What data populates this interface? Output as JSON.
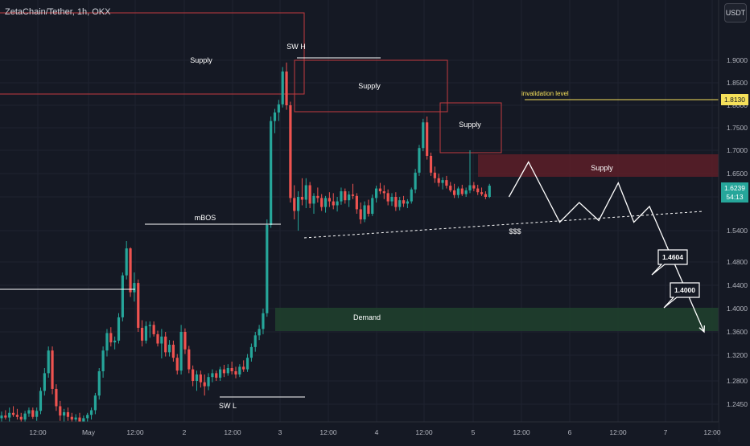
{
  "header": {
    "title": "ZetaChain/Tether, 1h, OKX",
    "currency": "USDT"
  },
  "colors": {
    "background": "#151924",
    "up": "#26a69a",
    "down": "#ef5350",
    "supply_line": "#c43b3f",
    "supply_fill": "#5c1f28",
    "demand_fill": "#1f3f2d",
    "yellow": "#f5e05a",
    "white": "#ffffff",
    "axis_text": "#b2b5be"
  },
  "chart_data": {
    "type": "candlestick",
    "symbol": "ZetaChain/Tether",
    "interval": "1h",
    "exchange": "OKX",
    "y_axis": {
      "ticks": [
        "1.9000",
        "1.8500",
        "1.8000",
        "1.7500",
        "1.7000",
        "1.6500",
        "1.6000",
        "1.5400",
        "1.4800",
        "1.4400",
        "1.4000",
        "1.3600",
        "1.3200",
        "1.2800",
        "1.2450"
      ],
      "tick_values": [
        1.9,
        1.85,
        1.8,
        1.75,
        1.7,
        1.65,
        1.6,
        1.54,
        1.48,
        1.44,
        1.4,
        1.36,
        1.32,
        1.28,
        1.245
      ]
    },
    "x_axis": {
      "ticks": [
        "12:00",
        "May",
        "12:00",
        "2",
        "12:00",
        "3",
        "12:00",
        "4",
        "12:00",
        "5",
        "12:00",
        "6",
        "12:00",
        "7",
        "12:00"
      ]
    },
    "current_price": {
      "value": "1.6239",
      "countdown": "54:13"
    },
    "invalidation": {
      "label": "invalidation level",
      "value": "1.8130"
    },
    "targets": [
      "1.4604",
      "1.4000"
    ],
    "zones": {
      "supply_labels": [
        "Supply",
        "Supply",
        "Supply",
        "Supply"
      ],
      "demand_label": "Demand"
    },
    "structure_labels": {
      "swing_high": "SW H",
      "swing_low": "SW L",
      "mbos": "mBOS",
      "liquidity": "$$$"
    },
    "candles": [
      {
        "o": 1.224,
        "h": 1.234,
        "l": 1.215,
        "c": 1.228
      },
      {
        "o": 1.228,
        "h": 1.236,
        "l": 1.222,
        "c": 1.225
      },
      {
        "o": 1.225,
        "h": 1.24,
        "l": 1.218,
        "c": 1.232
      },
      {
        "o": 1.232,
        "h": 1.242,
        "l": 1.226,
        "c": 1.229
      },
      {
        "o": 1.229,
        "h": 1.238,
        "l": 1.222,
        "c": 1.226
      },
      {
        "o": 1.226,
        "h": 1.232,
        "l": 1.218,
        "c": 1.222
      },
      {
        "o": 1.222,
        "h": 1.235,
        "l": 1.218,
        "c": 1.231
      },
      {
        "o": 1.231,
        "h": 1.24,
        "l": 1.226,
        "c": 1.236
      },
      {
        "o": 1.236,
        "h": 1.24,
        "l": 1.223,
        "c": 1.226
      },
      {
        "o": 1.226,
        "h": 1.24,
        "l": 1.22,
        "c": 1.235
      },
      {
        "o": 1.235,
        "h": 1.27,
        "l": 1.23,
        "c": 1.265
      },
      {
        "o": 1.265,
        "h": 1.3,
        "l": 1.258,
        "c": 1.292
      },
      {
        "o": 1.292,
        "h": 1.335,
        "l": 1.285,
        "c": 1.328
      },
      {
        "o": 1.328,
        "h": 1.335,
        "l": 1.26,
        "c": 1.268
      },
      {
        "o": 1.268,
        "h": 1.275,
        "l": 1.235,
        "c": 1.242
      },
      {
        "o": 1.242,
        "h": 1.25,
        "l": 1.22,
        "c": 1.228
      },
      {
        "o": 1.228,
        "h": 1.238,
        "l": 1.218,
        "c": 1.233
      },
      {
        "o": 1.233,
        "h": 1.24,
        "l": 1.22,
        "c": 1.226
      },
      {
        "o": 1.226,
        "h": 1.232,
        "l": 1.215,
        "c": 1.222
      },
      {
        "o": 1.222,
        "h": 1.23,
        "l": 1.212,
        "c": 1.225
      },
      {
        "o": 1.225,
        "h": 1.232,
        "l": 1.216,
        "c": 1.219
      },
      {
        "o": 1.219,
        "h": 1.228,
        "l": 1.213,
        "c": 1.224
      },
      {
        "o": 1.224,
        "h": 1.232,
        "l": 1.218,
        "c": 1.229
      },
      {
        "o": 1.229,
        "h": 1.24,
        "l": 1.222,
        "c": 1.236
      },
      {
        "o": 1.236,
        "h": 1.262,
        "l": 1.23,
        "c": 1.258
      },
      {
        "o": 1.258,
        "h": 1.3,
        "l": 1.252,
        "c": 1.295
      },
      {
        "o": 1.295,
        "h": 1.335,
        "l": 1.285,
        "c": 1.328
      },
      {
        "o": 1.328,
        "h": 1.365,
        "l": 1.318,
        "c": 1.358
      },
      {
        "o": 1.358,
        "h": 1.368,
        "l": 1.335,
        "c": 1.342
      },
      {
        "o": 1.342,
        "h": 1.352,
        "l": 1.33,
        "c": 1.345
      },
      {
        "o": 1.345,
        "h": 1.392,
        "l": 1.34,
        "c": 1.385
      },
      {
        "o": 1.385,
        "h": 1.462,
        "l": 1.378,
        "c": 1.457
      },
      {
        "o": 1.457,
        "h": 1.52,
        "l": 1.45,
        "c": 1.506
      },
      {
        "o": 1.506,
        "h": 1.508,
        "l": 1.42,
        "c": 1.428
      },
      {
        "o": 1.428,
        "h": 1.462,
        "l": 1.412,
        "c": 1.444
      },
      {
        "o": 1.444,
        "h": 1.45,
        "l": 1.36,
        "c": 1.367
      },
      {
        "o": 1.367,
        "h": 1.38,
        "l": 1.335,
        "c": 1.345
      },
      {
        "o": 1.345,
        "h": 1.378,
        "l": 1.34,
        "c": 1.37
      },
      {
        "o": 1.37,
        "h": 1.378,
        "l": 1.35,
        "c": 1.372
      },
      {
        "o": 1.372,
        "h": 1.378,
        "l": 1.352,
        "c": 1.356
      },
      {
        "o": 1.356,
        "h": 1.362,
        "l": 1.335,
        "c": 1.34
      },
      {
        "o": 1.34,
        "h": 1.365,
        "l": 1.315,
        "c": 1.352
      },
      {
        "o": 1.352,
        "h": 1.36,
        "l": 1.318,
        "c": 1.325
      },
      {
        "o": 1.325,
        "h": 1.346,
        "l": 1.318,
        "c": 1.338
      },
      {
        "o": 1.338,
        "h": 1.345,
        "l": 1.31,
        "c": 1.316
      },
      {
        "o": 1.316,
        "h": 1.322,
        "l": 1.29,
        "c": 1.296
      },
      {
        "o": 1.296,
        "h": 1.372,
        "l": 1.29,
        "c": 1.36
      },
      {
        "o": 1.36,
        "h": 1.366,
        "l": 1.322,
        "c": 1.33
      },
      {
        "o": 1.33,
        "h": 1.336,
        "l": 1.292,
        "c": 1.298
      },
      {
        "o": 1.298,
        "h": 1.304,
        "l": 1.272,
        "c": 1.28
      },
      {
        "o": 1.28,
        "h": 1.296,
        "l": 1.265,
        "c": 1.29
      },
      {
        "o": 1.29,
        "h": 1.296,
        "l": 1.27,
        "c": 1.278
      },
      {
        "o": 1.278,
        "h": 1.29,
        "l": 1.258,
        "c": 1.272
      },
      {
        "o": 1.272,
        "h": 1.292,
        "l": 1.266,
        "c": 1.286
      },
      {
        "o": 1.286,
        "h": 1.298,
        "l": 1.278,
        "c": 1.292
      },
      {
        "o": 1.292,
        "h": 1.296,
        "l": 1.28,
        "c": 1.285
      },
      {
        "o": 1.285,
        "h": 1.302,
        "l": 1.28,
        "c": 1.298
      },
      {
        "o": 1.298,
        "h": 1.305,
        "l": 1.286,
        "c": 1.292
      },
      {
        "o": 1.292,
        "h": 1.306,
        "l": 1.288,
        "c": 1.3
      },
      {
        "o": 1.3,
        "h": 1.31,
        "l": 1.29,
        "c": 1.295
      },
      {
        "o": 1.295,
        "h": 1.302,
        "l": 1.284,
        "c": 1.29
      },
      {
        "o": 1.29,
        "h": 1.306,
        "l": 1.286,
        "c": 1.302
      },
      {
        "o": 1.302,
        "h": 1.312,
        "l": 1.294,
        "c": 1.298
      },
      {
        "o": 1.298,
        "h": 1.322,
        "l": 1.294,
        "c": 1.316
      },
      {
        "o": 1.316,
        "h": 1.34,
        "l": 1.31,
        "c": 1.334
      },
      {
        "o": 1.334,
        "h": 1.36,
        "l": 1.326,
        "c": 1.354
      },
      {
        "o": 1.354,
        "h": 1.372,
        "l": 1.346,
        "c": 1.365
      },
      {
        "o": 1.365,
        "h": 1.4,
        "l": 1.356,
        "c": 1.392
      },
      {
        "o": 1.392,
        "h": 1.56,
        "l": 1.386,
        "c": 1.55
      },
      {
        "o": 1.55,
        "h": 1.775,
        "l": 1.545,
        "c": 1.765
      },
      {
        "o": 1.765,
        "h": 1.792,
        "l": 1.738,
        "c": 1.784
      },
      {
        "o": 1.784,
        "h": 1.812,
        "l": 1.765,
        "c": 1.802
      },
      {
        "o": 1.802,
        "h": 1.885,
        "l": 1.795,
        "c": 1.875
      },
      {
        "o": 1.875,
        "h": 1.895,
        "l": 1.79,
        "c": 1.8
      },
      {
        "o": 1.8,
        "h": 1.808,
        "l": 1.59,
        "c": 1.598
      },
      {
        "o": 1.598,
        "h": 1.625,
        "l": 1.56,
        "c": 1.575
      },
      {
        "o": 1.575,
        "h": 1.612,
        "l": 1.54,
        "c": 1.6
      },
      {
        "o": 1.6,
        "h": 1.64,
        "l": 1.585,
        "c": 1.595
      },
      {
        "o": 1.595,
        "h": 1.64,
        "l": 1.58,
        "c": 1.625
      },
      {
        "o": 1.625,
        "h": 1.632,
        "l": 1.58,
        "c": 1.588
      },
      {
        "o": 1.588,
        "h": 1.608,
        "l": 1.57,
        "c": 1.602
      },
      {
        "o": 1.602,
        "h": 1.62,
        "l": 1.59,
        "c": 1.598
      },
      {
        "o": 1.598,
        "h": 1.606,
        "l": 1.575,
        "c": 1.582
      },
      {
        "o": 1.582,
        "h": 1.602,
        "l": 1.572,
        "c": 1.598
      },
      {
        "o": 1.598,
        "h": 1.61,
        "l": 1.582,
        "c": 1.592
      },
      {
        "o": 1.592,
        "h": 1.608,
        "l": 1.578,
        "c": 1.585
      },
      {
        "o": 1.585,
        "h": 1.6,
        "l": 1.574,
        "c": 1.592
      },
      {
        "o": 1.592,
        "h": 1.62,
        "l": 1.586,
        "c": 1.612
      },
      {
        "o": 1.612,
        "h": 1.618,
        "l": 1.588,
        "c": 1.594
      },
      {
        "o": 1.594,
        "h": 1.612,
        "l": 1.582,
        "c": 1.605
      },
      {
        "o": 1.605,
        "h": 1.628,
        "l": 1.596,
        "c": 1.602
      },
      {
        "o": 1.602,
        "h": 1.608,
        "l": 1.57,
        "c": 1.578
      },
      {
        "o": 1.578,
        "h": 1.59,
        "l": 1.552,
        "c": 1.56
      },
      {
        "o": 1.56,
        "h": 1.592,
        "l": 1.555,
        "c": 1.585
      },
      {
        "o": 1.585,
        "h": 1.595,
        "l": 1.565,
        "c": 1.57
      },
      {
        "o": 1.57,
        "h": 1.605,
        "l": 1.566,
        "c": 1.598
      },
      {
        "o": 1.598,
        "h": 1.624,
        "l": 1.59,
        "c": 1.618
      },
      {
        "o": 1.618,
        "h": 1.63,
        "l": 1.606,
        "c": 1.612
      },
      {
        "o": 1.612,
        "h": 1.625,
        "l": 1.596,
        "c": 1.608
      },
      {
        "o": 1.608,
        "h": 1.616,
        "l": 1.585,
        "c": 1.592
      },
      {
        "o": 1.592,
        "h": 1.608,
        "l": 1.584,
        "c": 1.6
      },
      {
        "o": 1.6,
        "h": 1.61,
        "l": 1.575,
        "c": 1.582
      },
      {
        "o": 1.582,
        "h": 1.6,
        "l": 1.576,
        "c": 1.594
      },
      {
        "o": 1.594,
        "h": 1.602,
        "l": 1.582,
        "c": 1.588
      },
      {
        "o": 1.588,
        "h": 1.596,
        "l": 1.58,
        "c": 1.592
      },
      {
        "o": 1.592,
        "h": 1.62,
        "l": 1.588,
        "c": 1.616
      },
      {
        "o": 1.616,
        "h": 1.66,
        "l": 1.608,
        "c": 1.652
      },
      {
        "o": 1.652,
        "h": 1.712,
        "l": 1.645,
        "c": 1.705
      },
      {
        "o": 1.705,
        "h": 1.77,
        "l": 1.698,
        "c": 1.762
      },
      {
        "o": 1.762,
        "h": 1.775,
        "l": 1.68,
        "c": 1.688
      },
      {
        "o": 1.688,
        "h": 1.695,
        "l": 1.645,
        "c": 1.652
      },
      {
        "o": 1.652,
        "h": 1.665,
        "l": 1.63,
        "c": 1.64
      },
      {
        "o": 1.64,
        "h": 1.65,
        "l": 1.622,
        "c": 1.63
      },
      {
        "o": 1.63,
        "h": 1.642,
        "l": 1.616,
        "c": 1.636
      },
      {
        "o": 1.636,
        "h": 1.645,
        "l": 1.618,
        "c": 1.624
      },
      {
        "o": 1.624,
        "h": 1.632,
        "l": 1.61,
        "c": 1.614
      },
      {
        "o": 1.614,
        "h": 1.628,
        "l": 1.598,
        "c": 1.604
      },
      {
        "o": 1.604,
        "h": 1.622,
        "l": 1.598,
        "c": 1.618
      },
      {
        "o": 1.618,
        "h": 1.626,
        "l": 1.602,
        "c": 1.606
      },
      {
        "o": 1.606,
        "h": 1.62,
        "l": 1.6,
        "c": 1.614
      },
      {
        "o": 1.614,
        "h": 1.7,
        "l": 1.608,
        "c": 1.625
      },
      {
        "o": 1.625,
        "h": 1.632,
        "l": 1.612,
        "c": 1.618
      },
      {
        "o": 1.618,
        "h": 1.626,
        "l": 1.604,
        "c": 1.61
      },
      {
        "o": 1.61,
        "h": 1.62,
        "l": 1.602,
        "c": 1.606
      },
      {
        "o": 1.606,
        "h": 1.612,
        "l": 1.596,
        "c": 1.6
      },
      {
        "o": 1.6,
        "h": 1.628,
        "l": 1.598,
        "c": 1.624
      }
    ],
    "projection_path": [
      {
        "bar": 130,
        "price": 1.6
      },
      {
        "bar": 135,
        "price": 1.675
      },
      {
        "bar": 143,
        "price": 1.555
      },
      {
        "bar": 148,
        "price": 1.59
      },
      {
        "bar": 153,
        "price": 1.558
      },
      {
        "bar": 158,
        "price": 1.63
      },
      {
        "bar": 162,
        "price": 1.555
      },
      {
        "bar": 166,
        "price": 1.583
      },
      {
        "bar": 180,
        "price": 1.36
      }
    ]
  }
}
